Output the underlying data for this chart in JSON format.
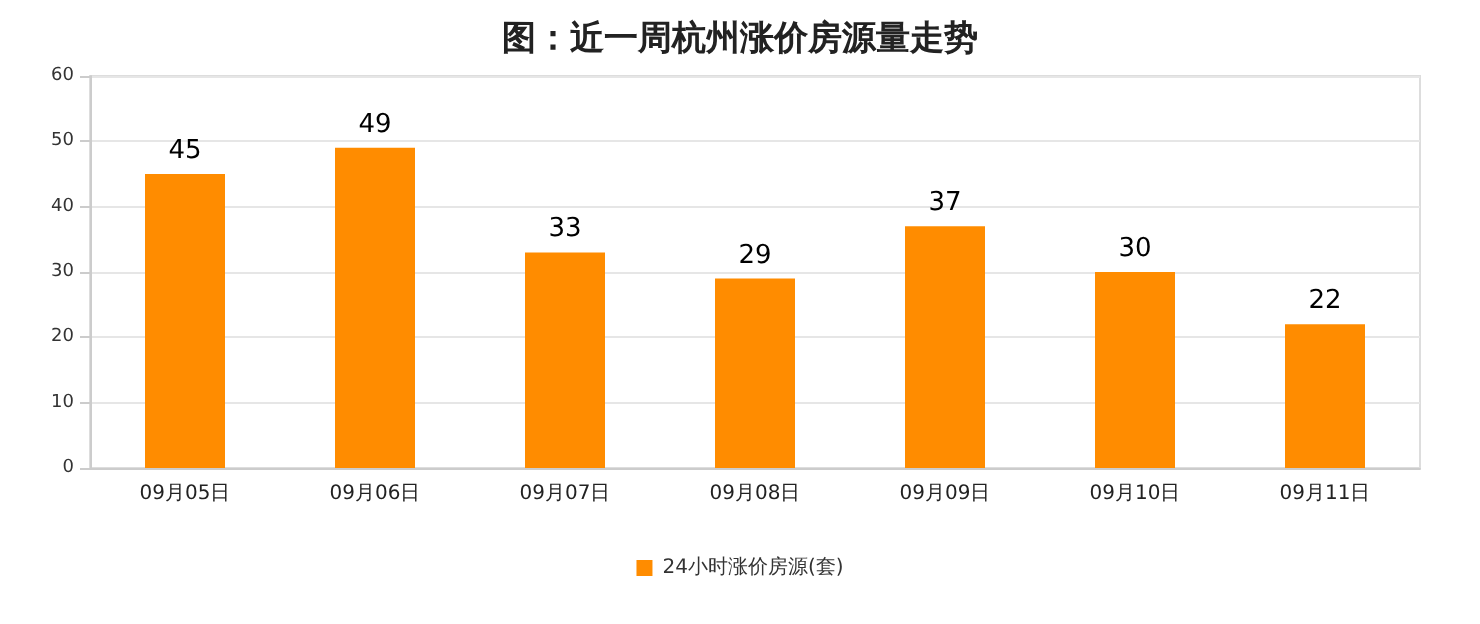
{
  "chart_data": {
    "type": "bar",
    "title": "图：近一周杭州涨价房源量走势",
    "categories": [
      "09月05日",
      "09月06日",
      "09月07日",
      "09月08日",
      "09月09日",
      "09月10日",
      "09月11日"
    ],
    "series": [
      {
        "name": "24小时涨价房源(套)",
        "color": "#ff8c00",
        "values": [
          45,
          49,
          33,
          29,
          37,
          30,
          22
        ]
      }
    ],
    "ylim": [
      0,
      60
    ],
    "yticks": [
      0,
      10,
      20,
      30,
      40,
      50,
      60
    ],
    "grid": "y",
    "legend": "bottom",
    "data_labels": true
  }
}
